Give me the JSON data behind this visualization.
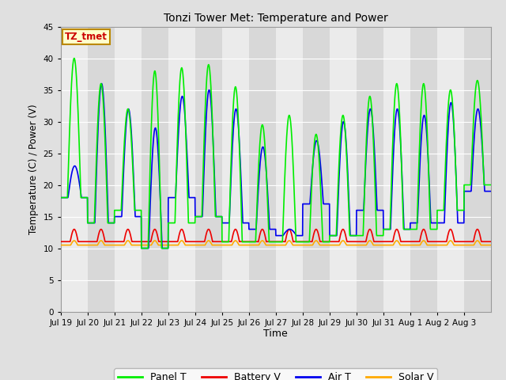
{
  "title": "Tonzi Tower Met: Temperature and Power",
  "xlabel": "Time",
  "ylabel": "Temperature (C) / Power (V)",
  "ylim": [
    0,
    45
  ],
  "yticks": [
    0,
    5,
    10,
    15,
    20,
    25,
    30,
    35,
    40,
    45
  ],
  "annotation_text": "TZ_tmet",
  "annotation_color": "#cc0000",
  "annotation_bg": "#ffffcc",
  "annotation_border": "#bb8800",
  "n_days": 16,
  "xtick_labels": [
    "Jul 19",
    "Jul 20",
    "Jul 21",
    "Jul 22",
    "Jul 23",
    "Jul 24",
    "Jul 25",
    "Jul 26",
    "Jul 27",
    "Jul 28",
    "Jul 29",
    "Jul 30",
    "Jul 31",
    "Aug 1",
    "Aug 2",
    "Aug 3"
  ],
  "panel_T_color": "#00ee00",
  "battery_V_color": "#ee0000",
  "air_T_color": "#0000ee",
  "solar_V_color": "#ffaa00",
  "band_light": "#ebebeb",
  "band_dark": "#d8d8d8",
  "fig_bg": "#e0e0e0",
  "grid_color": "#ffffff",
  "panel_T_peaks": [
    40,
    36,
    32,
    38,
    38.5,
    39,
    35.5,
    29.5,
    31,
    28,
    31,
    34,
    36,
    36,
    35,
    36.5
  ],
  "panel_T_mins": [
    18,
    14,
    16,
    10,
    14,
    15,
    11,
    11,
    11,
    11,
    12,
    12,
    13,
    13,
    16,
    20
  ],
  "air_T_peaks": [
    23,
    36,
    32,
    29,
    34,
    35,
    32,
    26,
    13,
    27,
    30,
    32,
    32,
    31,
    33,
    32
  ],
  "air_T_mins": [
    18,
    14,
    15,
    10,
    18,
    15,
    14,
    13,
    12,
    17,
    12,
    16,
    13,
    14,
    14,
    19
  ],
  "battery_V_base": 11.0,
  "battery_V_peak": 13.0,
  "solar_V_base": 10.5,
  "solar_V_peak": 11.2
}
